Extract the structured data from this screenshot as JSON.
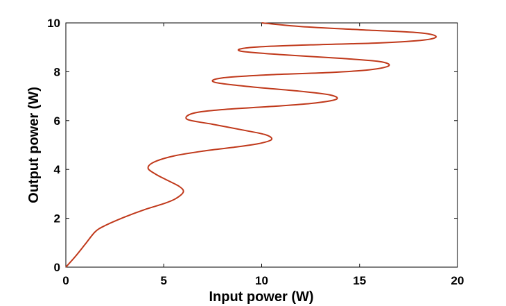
{
  "chart_data": {
    "type": "line",
    "xlabel": "Input power (W)",
    "ylabel": "Output power (W)",
    "xlim": [
      0,
      20
    ],
    "ylim": [
      0,
      10
    ],
    "xticks": [
      "0",
      "5",
      "10",
      "15",
      "20"
    ],
    "yticks": [
      "0",
      "2",
      "4",
      "6",
      "8",
      "10"
    ],
    "grid": false,
    "series": [
      {
        "color": "#c0391b",
        "points": [
          [
            0,
            0
          ],
          [
            0.5,
            0.45
          ],
          [
            1.0,
            0.95
          ],
          [
            1.5,
            1.45
          ],
          [
            2.0,
            1.7
          ],
          [
            3.0,
            2.05
          ],
          [
            4.0,
            2.35
          ],
          [
            5.0,
            2.6
          ],
          [
            5.6,
            2.8
          ],
          [
            6.0,
            3.08
          ],
          [
            5.8,
            3.3
          ],
          [
            5.2,
            3.55
          ],
          [
            4.6,
            3.8
          ],
          [
            4.2,
            4.05
          ],
          [
            4.5,
            4.3
          ],
          [
            5.5,
            4.55
          ],
          [
            7.0,
            4.75
          ],
          [
            8.5,
            4.9
          ],
          [
            9.8,
            5.05
          ],
          [
            10.5,
            5.22
          ],
          [
            10.2,
            5.42
          ],
          [
            9.0,
            5.62
          ],
          [
            7.5,
            5.85
          ],
          [
            6.2,
            6.05
          ],
          [
            6.5,
            6.3
          ],
          [
            8.0,
            6.45
          ],
          [
            10.5,
            6.58
          ],
          [
            12.5,
            6.7
          ],
          [
            13.8,
            6.87
          ],
          [
            13.5,
            7.05
          ],
          [
            12.0,
            7.2
          ],
          [
            9.5,
            7.38
          ],
          [
            7.6,
            7.57
          ],
          [
            8.0,
            7.75
          ],
          [
            10.5,
            7.88
          ],
          [
            13.5,
            7.97
          ],
          [
            15.5,
            8.08
          ],
          [
            16.5,
            8.25
          ],
          [
            16.0,
            8.42
          ],
          [
            14.0,
            8.55
          ],
          [
            11.0,
            8.7
          ],
          [
            8.9,
            8.85
          ],
          [
            9.5,
            9.0
          ],
          [
            12.5,
            9.1
          ],
          [
            16.0,
            9.18
          ],
          [
            18.3,
            9.3
          ],
          [
            18.9,
            9.45
          ],
          [
            18.0,
            9.6
          ],
          [
            15.0,
            9.72
          ],
          [
            12.0,
            9.85
          ],
          [
            10.0,
            10.0
          ]
        ]
      }
    ]
  }
}
